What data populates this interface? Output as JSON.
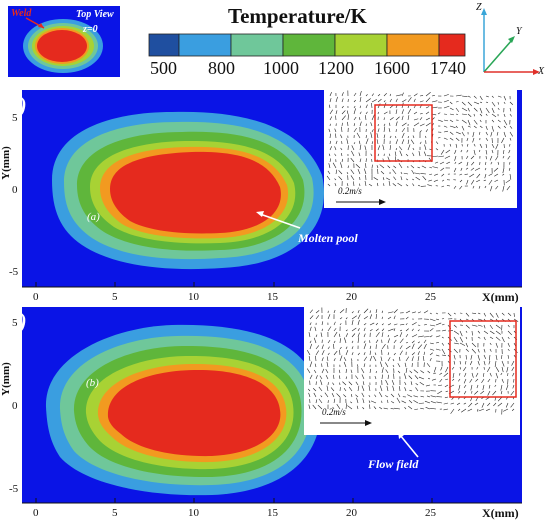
{
  "thumbnail": {
    "weld": "Weld",
    "view": "Top View",
    "z": "z=0"
  },
  "legend": {
    "title": "Temperature/K",
    "ticks": [
      "500",
      "800",
      "1000",
      "1200",
      "1600",
      "1740"
    ],
    "colors": [
      "#1f4fa0",
      "#3a9ee0",
      "#6fc79a",
      "#5fb63b",
      "#a8d234",
      "#f29a20",
      "#e52a1e"
    ]
  },
  "axes3d": {
    "z": "Z",
    "y": "Y",
    "x": "X"
  },
  "panels": [
    {
      "id": "(a)",
      "inner_label": "(a)",
      "annotation": "Molten pool",
      "inset_scale": "0.2m/s",
      "ylabel": "Y(mm)",
      "xlabel": "X(mm)",
      "xticks": [
        "0",
        "5",
        "10",
        "15",
        "20",
        "25"
      ],
      "yticks": [
        "5",
        "0",
        "-5"
      ]
    },
    {
      "id": "(b)",
      "inner_label": "(b)",
      "annotation": "Flow field",
      "inset_scale": "0.2m/s",
      "ylabel": "Y(mm)",
      "xlabel": "X(mm)",
      "xticks": [
        "0",
        "5",
        "10",
        "15",
        "20",
        "25"
      ],
      "yticks": [
        "5",
        "0",
        "-5"
      ]
    }
  ]
}
